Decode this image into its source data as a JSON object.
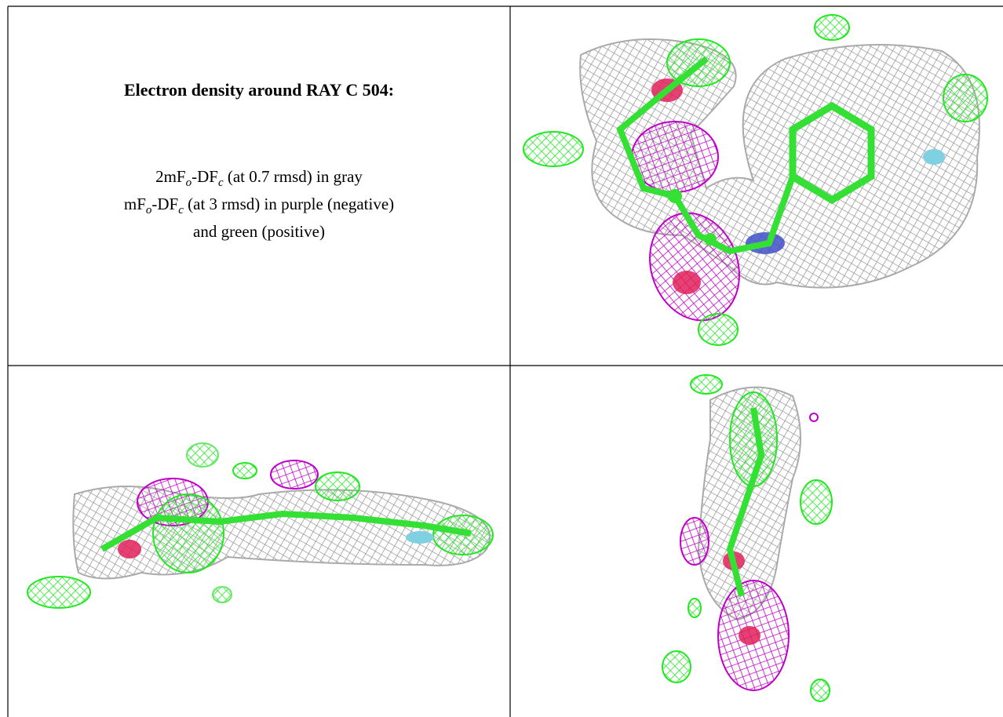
{
  "legend": {
    "title": "Electron density around RAY C 504:",
    "lines": [
      [
        "2mF",
        "o",
        "-DF",
        "c",
        " (at 0.7 rmsd) in gray"
      ],
      [
        "mF",
        "o",
        "-DF",
        "c",
        " (at 3 rmsd) in purple (negative)"
      ],
      [
        "and green (positive)"
      ]
    ]
  }
}
